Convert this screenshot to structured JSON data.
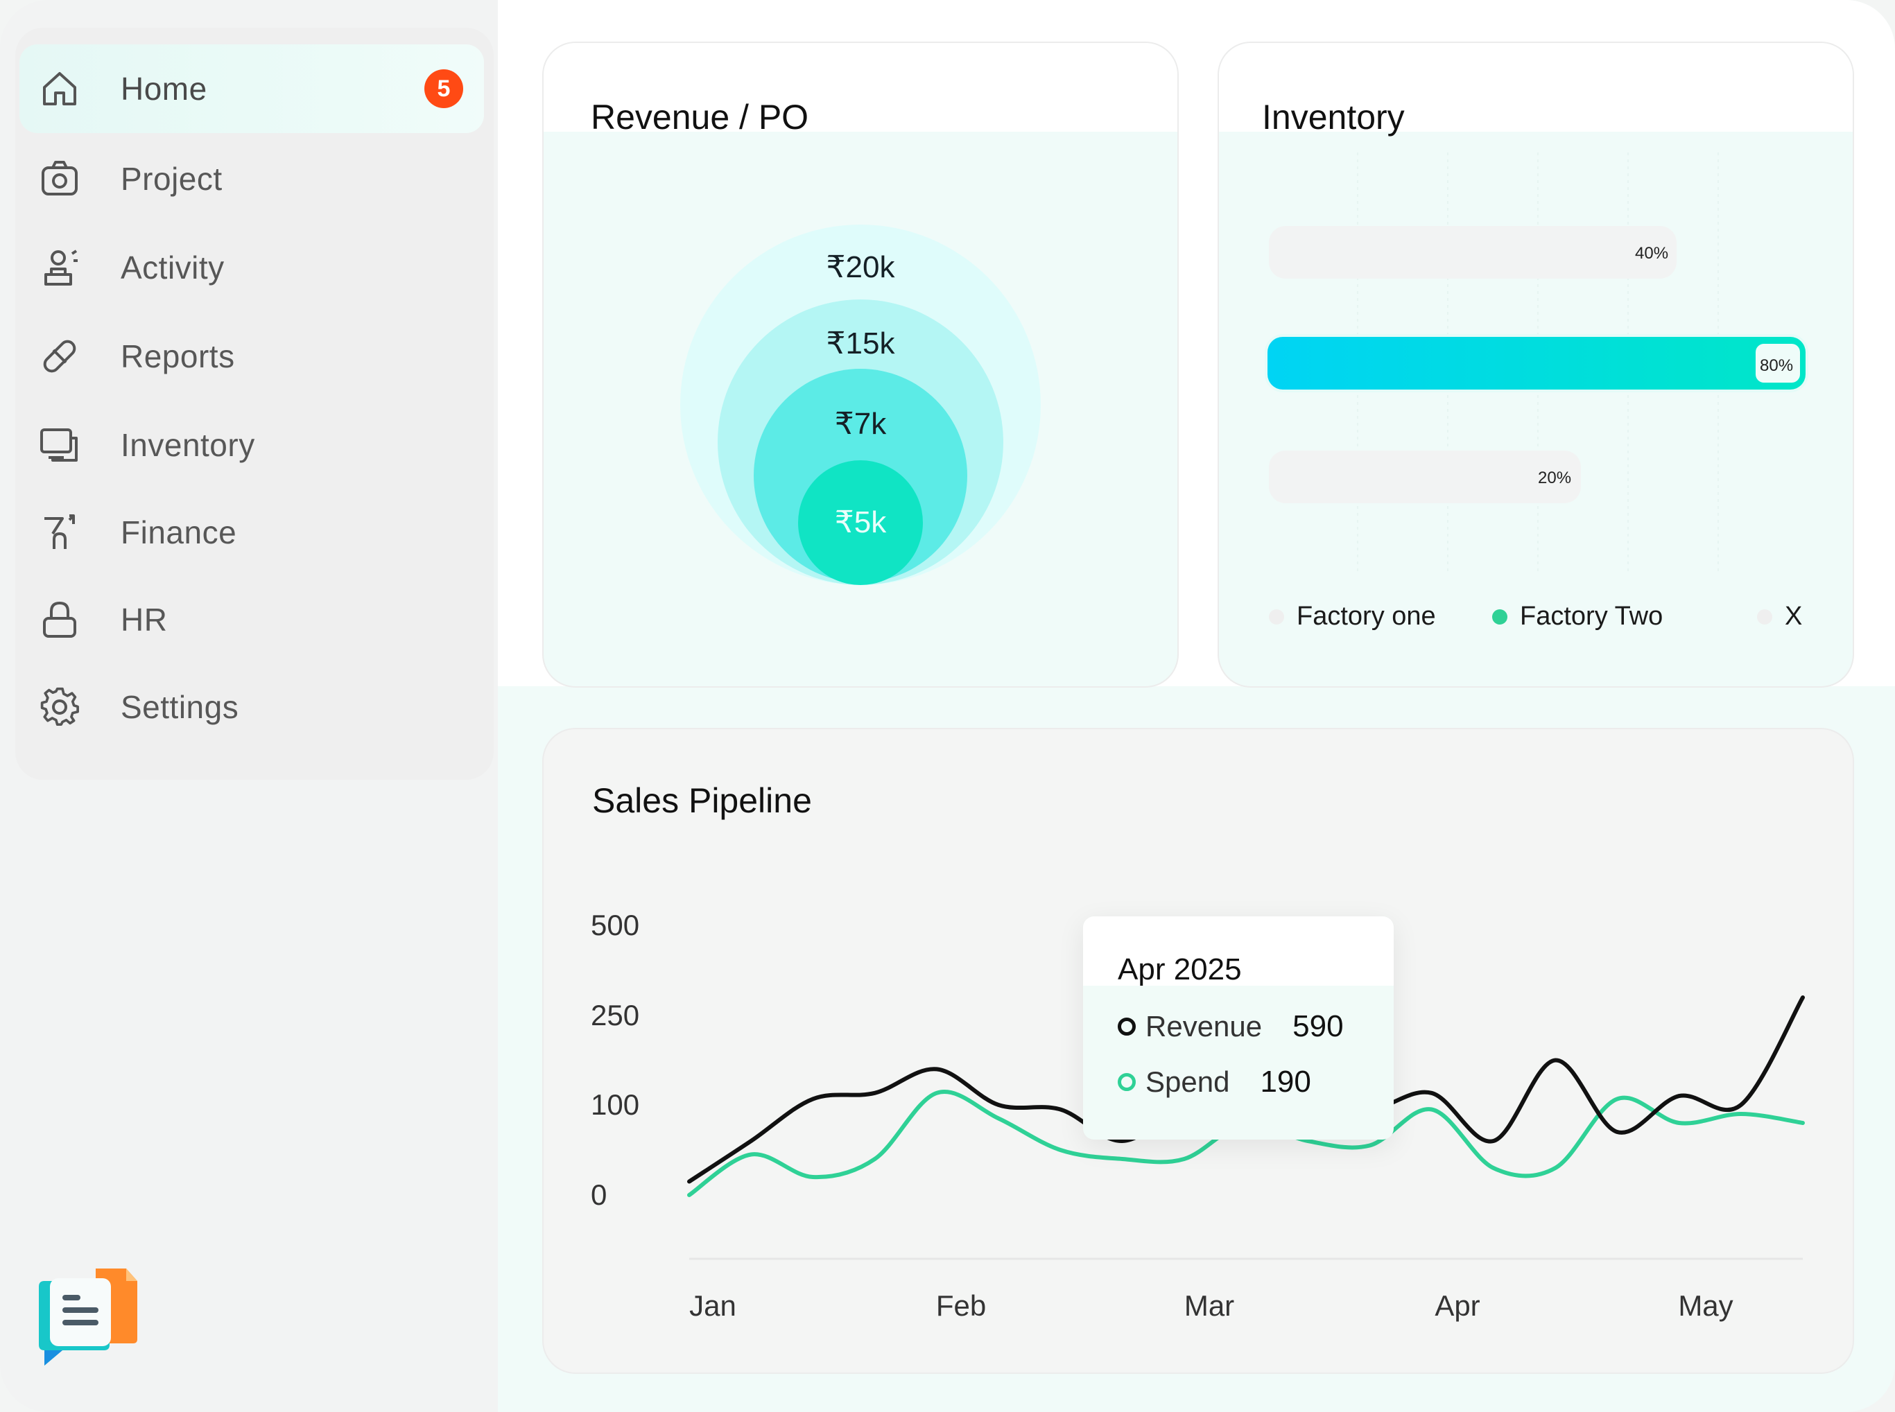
{
  "sidebar": {
    "items": [
      {
        "label": "Home",
        "icon": "home-icon",
        "badge": "5",
        "active": true
      },
      {
        "label": "Project",
        "icon": "camera-icon"
      },
      {
        "label": "Activity",
        "icon": "activity-icon"
      },
      {
        "label": "Reports",
        "icon": "pill-icon"
      },
      {
        "label": "Inventory",
        "icon": "monitor-icon"
      },
      {
        "label": "Finance",
        "icon": "finance-icon"
      },
      {
        "label": "HR",
        "icon": "lock-icon"
      },
      {
        "label": "Settings",
        "icon": "gear-icon"
      }
    ]
  },
  "revenue_card": {
    "title": "Revenue / PO",
    "bubbles": [
      "₹20k",
      "₹15k",
      "₹7k",
      "₹5k"
    ]
  },
  "inventory_card": {
    "title": "Inventory",
    "bars": [
      {
        "label": "40%",
        "value": 0.4,
        "highlight": false
      },
      {
        "label": "80%",
        "value": 0.8,
        "highlight": true
      },
      {
        "label": "20%",
        "value": 0.2,
        "highlight": false
      }
    ],
    "legend": [
      {
        "label": "Factory one",
        "color": "#efefef"
      },
      {
        "label": "Factory Two",
        "color": "#2fd196"
      },
      {
        "label": "X",
        "color": "#efefef"
      }
    ]
  },
  "pipeline_card": {
    "title": "Sales Pipeline",
    "tooltip": {
      "title": "Apr 2025",
      "revenue_label": "Revenue",
      "revenue_value": "590",
      "spend_label": "Spend",
      "spend_value": "190"
    }
  },
  "colors": {
    "accent_teal": "#00d6c4",
    "accent_cyan": "#00d4f4",
    "spend_line": "#2fd196",
    "revenue_line": "#111111",
    "badge": "#ff4a14"
  },
  "chart_data": {
    "type": "line",
    "title": "Sales Pipeline",
    "categories": [
      "Jan",
      "Feb",
      "Mar",
      "Apr",
      "May"
    ],
    "y_ticks": [
      "500",
      "250",
      "100",
      "0"
    ],
    "x": [
      0.0,
      0.25,
      0.5,
      0.75,
      1.0,
      1.25,
      1.5,
      1.75,
      2.0,
      2.25,
      2.5,
      2.75,
      3.0,
      3.25,
      3.5,
      3.75,
      4.0,
      4.25,
      4.5
    ],
    "series": [
      {
        "name": "Revenue",
        "color": "#111111",
        "values": [
          15,
          60,
          110,
          120,
          160,
          100,
          95,
          60,
          100,
          140,
          110,
          95,
          120,
          60,
          175,
          70,
          115,
          100,
          300
        ]
      },
      {
        "name": "Spend",
        "color": "#2fd196",
        "values": [
          0,
          45,
          20,
          40,
          120,
          85,
          50,
          40,
          40,
          80,
          60,
          55,
          95,
          30,
          30,
          110,
          80,
          90,
          80
        ]
      }
    ]
  }
}
